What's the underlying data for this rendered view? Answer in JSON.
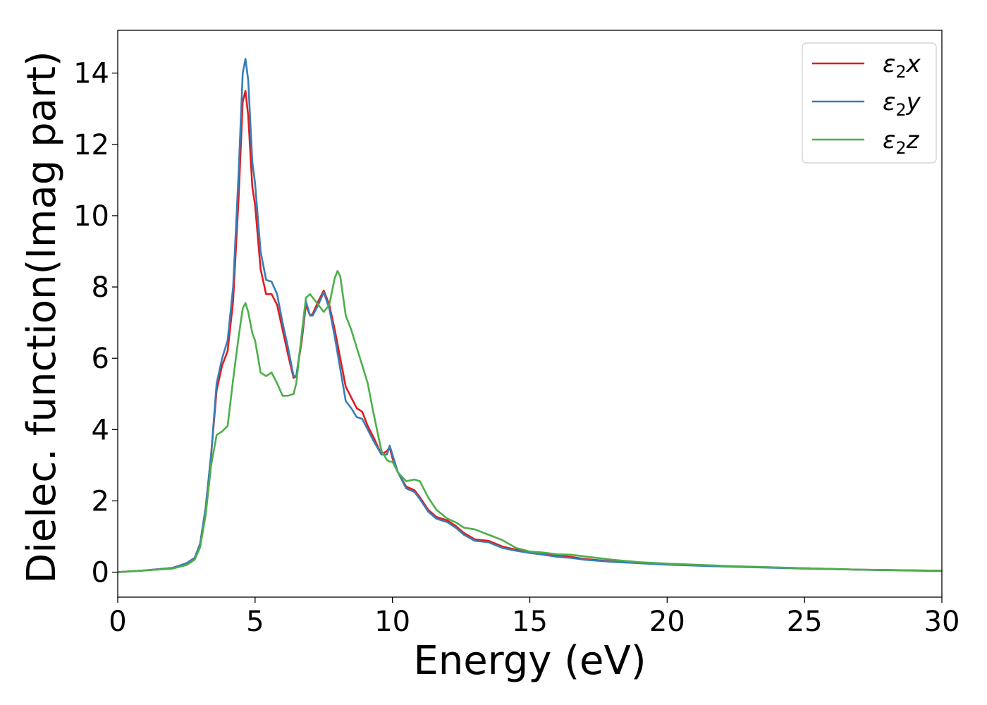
{
  "chart_data": {
    "type": "line",
    "xlabel": "Energy (eV)",
    "ylabel": "Dielec. function(Imag part)",
    "xlim": [
      0,
      30
    ],
    "ylim": [
      -0.7,
      15.2
    ],
    "xticks": [
      0,
      5,
      10,
      15,
      20,
      25,
      30
    ],
    "yticks": [
      0,
      2,
      4,
      6,
      8,
      10,
      12,
      14
    ],
    "grid": false,
    "legend_position": "top-right",
    "series": [
      {
        "name": "ε2x",
        "legend_main": "ε",
        "legend_sub": "2",
        "legend_suffix": "x",
        "color": "#e41a1c",
        "x": [
          0,
          1,
          2,
          2.5,
          2.8,
          3.0,
          3.2,
          3.4,
          3.6,
          3.8,
          4.0,
          4.2,
          4.4,
          4.55,
          4.65,
          4.75,
          4.9,
          5.0,
          5.2,
          5.4,
          5.6,
          5.8,
          6.0,
          6.2,
          6.4,
          6.5,
          6.7,
          6.85,
          7.0,
          7.1,
          7.3,
          7.5,
          7.7,
          7.9,
          8.1,
          8.3,
          8.5,
          8.7,
          8.9,
          9.1,
          9.3,
          9.6,
          9.8,
          9.9,
          10.0,
          10.2,
          10.5,
          10.8,
          11.0,
          11.3,
          11.6,
          12.0,
          12.3,
          12.6,
          13.0,
          13.5,
          14.0,
          14.5,
          15.0,
          15.5,
          16.0,
          16.5,
          17.0,
          18.0,
          19.0,
          20.0,
          22.0,
          25.0,
          27.0,
          30.0
        ],
        "values": [
          0.0,
          0.05,
          0.12,
          0.25,
          0.4,
          0.8,
          1.8,
          3.3,
          5.1,
          5.8,
          6.2,
          7.6,
          10.5,
          13.2,
          13.5,
          12.8,
          10.8,
          10.3,
          8.5,
          7.8,
          7.8,
          7.5,
          6.8,
          6.1,
          5.45,
          5.5,
          6.5,
          7.5,
          7.2,
          7.25,
          7.6,
          7.9,
          7.5,
          6.8,
          6.0,
          5.2,
          4.9,
          4.6,
          4.5,
          4.1,
          3.8,
          3.3,
          3.4,
          3.5,
          3.2,
          2.8,
          2.4,
          2.3,
          2.1,
          1.75,
          1.55,
          1.45,
          1.3,
          1.1,
          0.92,
          0.88,
          0.72,
          0.63,
          0.57,
          0.52,
          0.47,
          0.43,
          0.37,
          0.3,
          0.26,
          0.22,
          0.17,
          0.11,
          0.07,
          0.04
        ]
      },
      {
        "name": "ε2y",
        "legend_main": "ε",
        "legend_sub": "2",
        "legend_suffix": "y",
        "color": "#377eb8",
        "x": [
          0,
          1,
          2,
          2.5,
          2.8,
          3.0,
          3.2,
          3.4,
          3.6,
          3.8,
          4.0,
          4.2,
          4.4,
          4.55,
          4.65,
          4.75,
          4.9,
          5.0,
          5.2,
          5.4,
          5.6,
          5.8,
          6.0,
          6.2,
          6.4,
          6.5,
          6.7,
          6.85,
          7.0,
          7.1,
          7.3,
          7.5,
          7.7,
          7.9,
          8.1,
          8.3,
          8.5,
          8.7,
          8.9,
          9.1,
          9.3,
          9.6,
          9.8,
          9.9,
          10.0,
          10.2,
          10.5,
          10.8,
          11.0,
          11.3,
          11.6,
          12.0,
          12.3,
          12.6,
          13.0,
          13.5,
          14.0,
          14.5,
          15.0,
          15.5,
          16.0,
          16.5,
          17.0,
          18.0,
          19.0,
          20.0,
          22.0,
          25.0,
          27.0,
          30.0
        ],
        "values": [
          0.0,
          0.05,
          0.12,
          0.25,
          0.4,
          0.8,
          1.8,
          3.3,
          5.3,
          6.0,
          6.5,
          8.0,
          11.2,
          14.0,
          14.4,
          13.8,
          11.5,
          10.9,
          9.0,
          8.2,
          8.15,
          7.8,
          7.0,
          6.3,
          5.5,
          5.5,
          6.6,
          7.6,
          7.2,
          7.2,
          7.5,
          7.85,
          7.4,
          6.6,
          5.7,
          4.8,
          4.6,
          4.35,
          4.3,
          4.0,
          3.7,
          3.3,
          3.3,
          3.55,
          3.3,
          2.8,
          2.35,
          2.25,
          2.05,
          1.7,
          1.5,
          1.4,
          1.25,
          1.05,
          0.88,
          0.84,
          0.68,
          0.6,
          0.54,
          0.49,
          0.43,
          0.4,
          0.35,
          0.29,
          0.25,
          0.21,
          0.16,
          0.1,
          0.07,
          0.03
        ]
      },
      {
        "name": "ε2z",
        "legend_main": "ε",
        "legend_sub": "2",
        "legend_suffix": "z",
        "color": "#4daf4a",
        "x": [
          0,
          1,
          2,
          2.5,
          2.8,
          3.0,
          3.2,
          3.4,
          3.6,
          3.8,
          4.0,
          4.2,
          4.4,
          4.55,
          4.65,
          4.75,
          4.9,
          5.0,
          5.2,
          5.4,
          5.6,
          5.8,
          6.0,
          6.2,
          6.4,
          6.5,
          6.7,
          6.85,
          7.0,
          7.1,
          7.3,
          7.5,
          7.7,
          7.9,
          8.0,
          8.1,
          8.3,
          8.5,
          8.7,
          8.9,
          9.1,
          9.3,
          9.6,
          9.8,
          9.9,
          10.0,
          10.2,
          10.5,
          10.8,
          11.0,
          11.3,
          11.6,
          12.0,
          12.3,
          12.6,
          13.0,
          13.5,
          14.0,
          14.5,
          15.0,
          15.5,
          16.0,
          16.5,
          17.0,
          18.0,
          19.0,
          20.0,
          22.0,
          25.0,
          27.0,
          30.0
        ],
        "values": [
          0.0,
          0.05,
          0.1,
          0.2,
          0.35,
          0.7,
          1.6,
          3.0,
          3.85,
          3.95,
          4.1,
          5.4,
          6.6,
          7.4,
          7.55,
          7.3,
          6.7,
          6.5,
          5.6,
          5.5,
          5.6,
          5.3,
          4.95,
          4.95,
          5.0,
          5.3,
          6.7,
          7.7,
          7.8,
          7.7,
          7.5,
          7.3,
          7.5,
          8.25,
          8.45,
          8.3,
          7.2,
          6.8,
          6.3,
          5.8,
          5.3,
          4.5,
          3.4,
          3.15,
          3.1,
          3.1,
          2.8,
          2.55,
          2.6,
          2.55,
          2.1,
          1.75,
          1.5,
          1.4,
          1.25,
          1.2,
          1.05,
          0.9,
          0.68,
          0.58,
          0.55,
          0.5,
          0.49,
          0.44,
          0.35,
          0.28,
          0.24,
          0.18,
          0.11,
          0.07,
          0.04
        ]
      }
    ]
  }
}
